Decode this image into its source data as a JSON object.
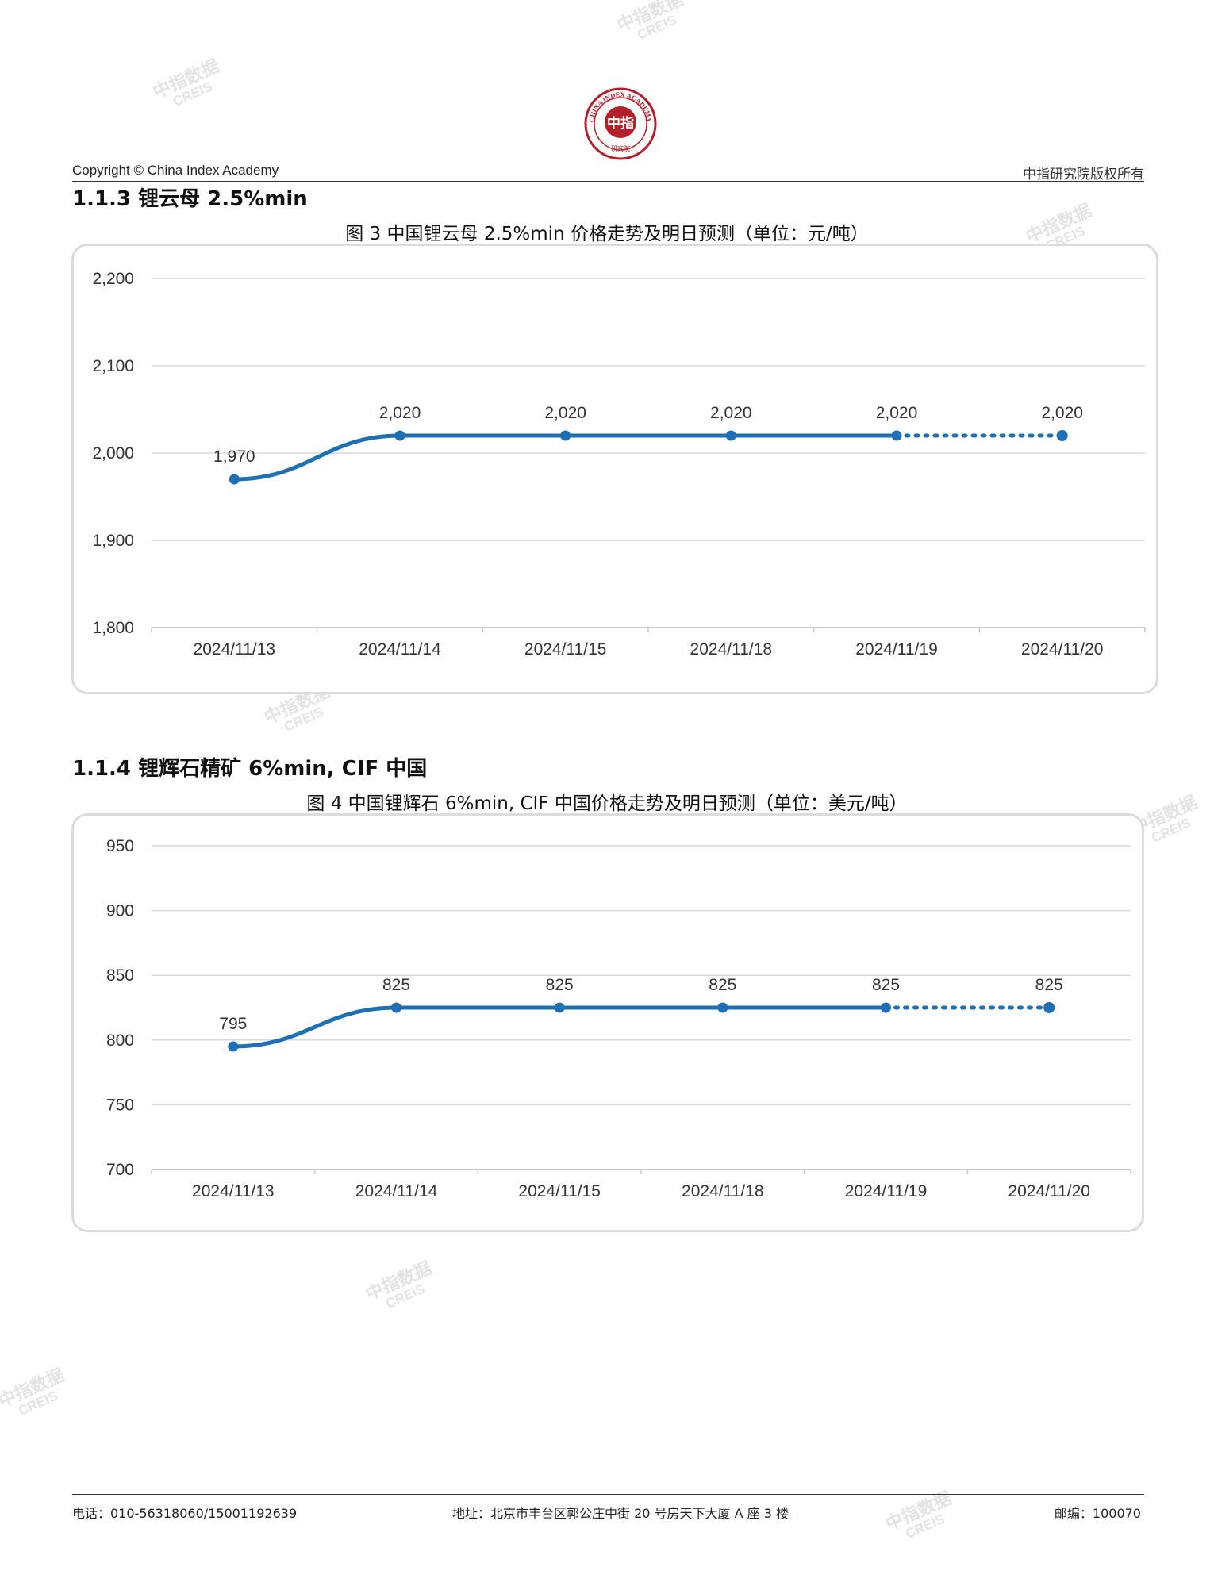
{
  "header": {
    "logo_top": "CHINA INDEX ACADEMY",
    "logo_center": "中指",
    "logo_bottom": "研究院",
    "copyright": "Copyright © China Index Academy",
    "rights": "中指研究院版权所有"
  },
  "watermark": {
    "line1": "中指数据",
    "line2": "CREIS"
  },
  "sections": [
    {
      "title": "1.1.3 锂云母 2.5%min",
      "chart_title": "图 3 中国锂云母 2.5%min 价格走势及明日预测（单位：元/吨）"
    },
    {
      "title": "1.1.4 锂辉石精矿 6%min, CIF 中国",
      "chart_title": "图 4 中国锂辉石 6%min, CIF 中国价格走势及明日预测（单位：美元/吨）"
    }
  ],
  "chart_data": [
    {
      "type": "line",
      "title": "图 3 中国锂云母 2.5%min 价格走势及明日预测（单位：元/吨）",
      "categories": [
        "2024/11/13",
        "2024/11/14",
        "2024/11/15",
        "2024/11/18",
        "2024/11/19",
        "2024/11/20"
      ],
      "values": [
        1970,
        2020,
        2020,
        2020,
        2020,
        2020
      ],
      "value_labels": [
        "1,970",
        "2,020",
        "2,020",
        "2,020",
        "2,020",
        "2,020"
      ],
      "forecast_from_index": 4,
      "ylim": [
        1800,
        2200
      ],
      "yticks": [
        1800,
        1900,
        2000,
        2100,
        2200
      ],
      "ytick_labels": [
        "1,800",
        "1,900",
        "2,000",
        "2,100",
        "2,200"
      ],
      "grid": true,
      "color": "#1f6fb5"
    },
    {
      "type": "line",
      "title": "图 4 中国锂辉石 6%min, CIF 中国价格走势及明日预测（单位：美元/吨）",
      "categories": [
        "2024/11/13",
        "2024/11/14",
        "2024/11/15",
        "2024/11/18",
        "2024/11/19",
        "2024/11/20"
      ],
      "values": [
        795,
        825,
        825,
        825,
        825,
        825
      ],
      "value_labels": [
        "795",
        "825",
        "825",
        "825",
        "825",
        "825"
      ],
      "forecast_from_index": 4,
      "ylim": [
        700,
        950
      ],
      "yticks": [
        700,
        750,
        800,
        850,
        900,
        950
      ],
      "ytick_labels": [
        "700",
        "750",
        "800",
        "850",
        "900",
        "950"
      ],
      "grid": true,
      "color": "#1f6fb5"
    }
  ],
  "footer": {
    "phone": "电话：010-56318060/15001192639",
    "address": "地址：北京市丰台区郭公庄中街 20 号房天下大厦 A 座 3 楼",
    "postcode": "邮编：100070"
  }
}
